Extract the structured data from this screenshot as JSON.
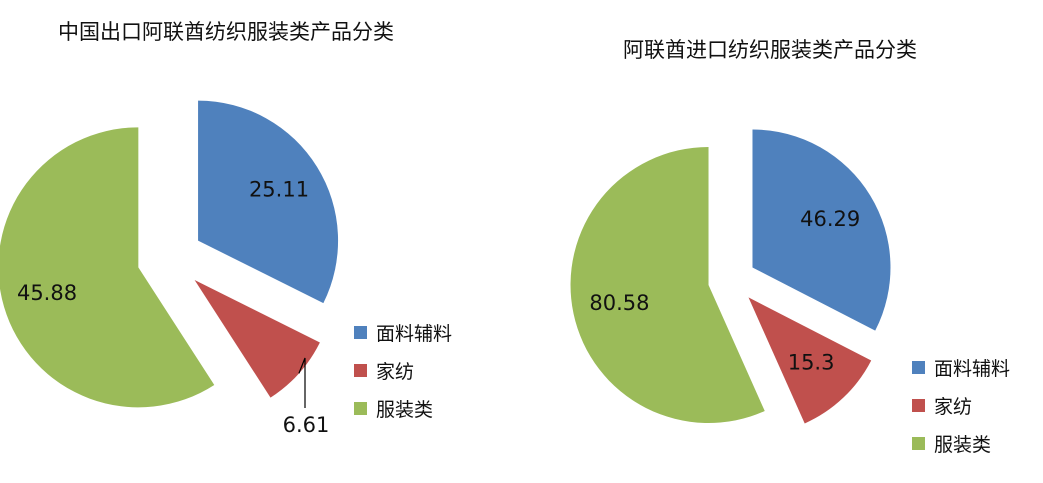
{
  "chart_data": [
    {
      "type": "pie",
      "title": "中国出口阿联酋纺织服装类产品分类",
      "categories": [
        "面料辅料",
        "家纺",
        "服装类"
      ],
      "values": [
        25.11,
        6.61,
        45.88
      ],
      "labels": [
        "25.11",
        "6.61",
        "45.88"
      ],
      "colors": [
        "#4F81BD",
        "#C0504D",
        "#9BBB59"
      ],
      "legend_position": "right",
      "exploded": true
    },
    {
      "type": "pie",
      "title": "阿联酋进口纺织服装类产品分类",
      "categories": [
        "面料辅料",
        "家纺",
        "服装类"
      ],
      "values": [
        46.29,
        15.3,
        80.58
      ],
      "labels": [
        "46.29",
        "15.3",
        "80.58"
      ],
      "colors": [
        "#4F81BD",
        "#C0504D",
        "#9BBB59"
      ],
      "legend_position": "right",
      "exploded": true
    }
  ]
}
